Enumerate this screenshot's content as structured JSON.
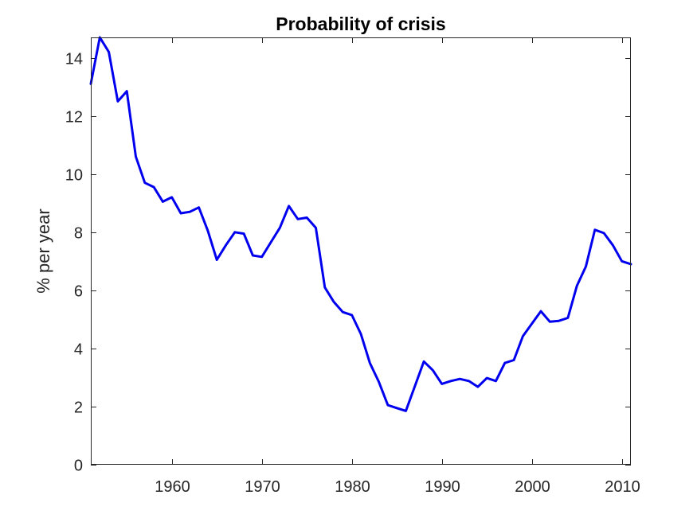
{
  "chart_data": {
    "type": "line",
    "title": "Probability of crisis",
    "xlabel": "",
    "ylabel": "% per year",
    "xlim": [
      1951,
      2011
    ],
    "ylim": [
      0,
      14.7
    ],
    "xticks": [
      1960,
      1970,
      1980,
      1990,
      2000,
      2010
    ],
    "yticks": [
      0,
      2,
      4,
      6,
      8,
      10,
      12,
      14
    ],
    "grid": false,
    "series": [
      {
        "color": "#0000ee",
        "x": [
          1951,
          1952,
          1953,
          1954,
          1955,
          1956,
          1957,
          1958,
          1959,
          1960,
          1961,
          1962,
          1963,
          1964,
          1965,
          1966,
          1967,
          1968,
          1969,
          1970,
          1971,
          1972,
          1973,
          1974,
          1975,
          1976,
          1977,
          1978,
          1979,
          1980,
          1981,
          1982,
          1983,
          1984,
          1985,
          1986,
          1987,
          1988,
          1989,
          1990,
          1991,
          1992,
          1993,
          1994,
          1995,
          1996,
          1997,
          1998,
          1999,
          2000,
          2001,
          2002,
          2003,
          2004,
          2005,
          2006,
          2007,
          2008,
          2009,
          2010,
          2011
        ],
        "y": [
          13.1,
          14.7,
          14.2,
          12.5,
          12.85,
          10.6,
          9.7,
          9.55,
          9.05,
          9.2,
          8.65,
          8.7,
          8.85,
          8.05,
          7.05,
          7.55,
          8.0,
          7.95,
          7.2,
          7.15,
          7.65,
          8.15,
          8.9,
          8.45,
          8.5,
          8.15,
          6.1,
          5.6,
          5.25,
          5.15,
          4.5,
          3.5,
          2.85,
          2.05,
          1.95,
          1.85,
          2.7,
          3.55,
          3.25,
          2.78,
          2.88,
          2.95,
          2.88,
          2.68,
          2.98,
          2.88,
          3.5,
          3.6,
          4.42,
          4.85,
          5.28,
          4.92,
          4.95,
          5.05,
          6.15,
          6.82,
          8.08,
          7.97,
          7.55,
          7.0,
          6.9
        ]
      }
    ]
  }
}
